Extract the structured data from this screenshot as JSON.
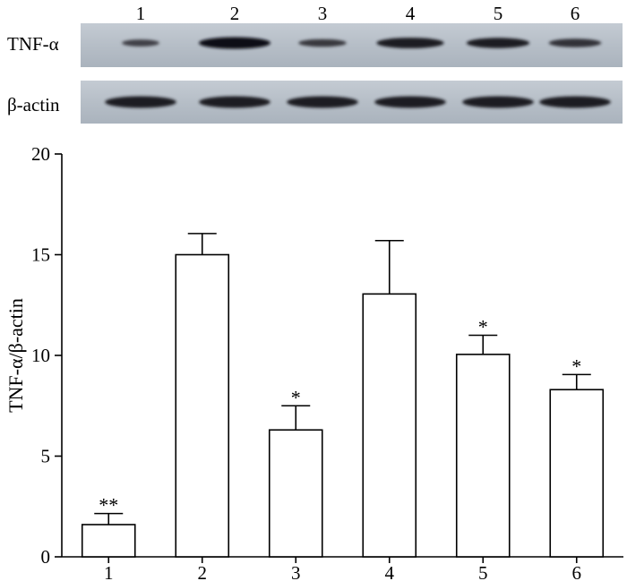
{
  "blot": {
    "lane_labels": [
      "1",
      "2",
      "3",
      "4",
      "5",
      "6"
    ],
    "rows": [
      {
        "label": "TNF-α",
        "band_intensity": [
          0.35,
          1.0,
          0.45,
          0.85,
          0.8,
          0.55
        ]
      },
      {
        "label": "β-actin",
        "band_intensity": [
          0.85,
          0.85,
          0.85,
          0.85,
          0.85,
          0.85
        ]
      }
    ]
  },
  "chart_data": {
    "type": "bar",
    "categories": [
      "1",
      "2",
      "3",
      "4",
      "5",
      "6"
    ],
    "values": [
      1.6,
      15.0,
      6.3,
      13.05,
      10.05,
      8.3
    ],
    "errors": [
      0.55,
      1.05,
      1.2,
      2.65,
      0.95,
      0.75
    ],
    "annotations": [
      "**",
      "",
      "*",
      "",
      "*",
      "*"
    ],
    "ylabel": "TNF-α/β-actin",
    "ylim": [
      0,
      20
    ],
    "yticks": [
      0,
      5,
      10,
      15,
      20
    ],
    "colors": {
      "bar_fill": "#ffffff",
      "bar_stroke": "#000000"
    },
    "grid": false
  }
}
